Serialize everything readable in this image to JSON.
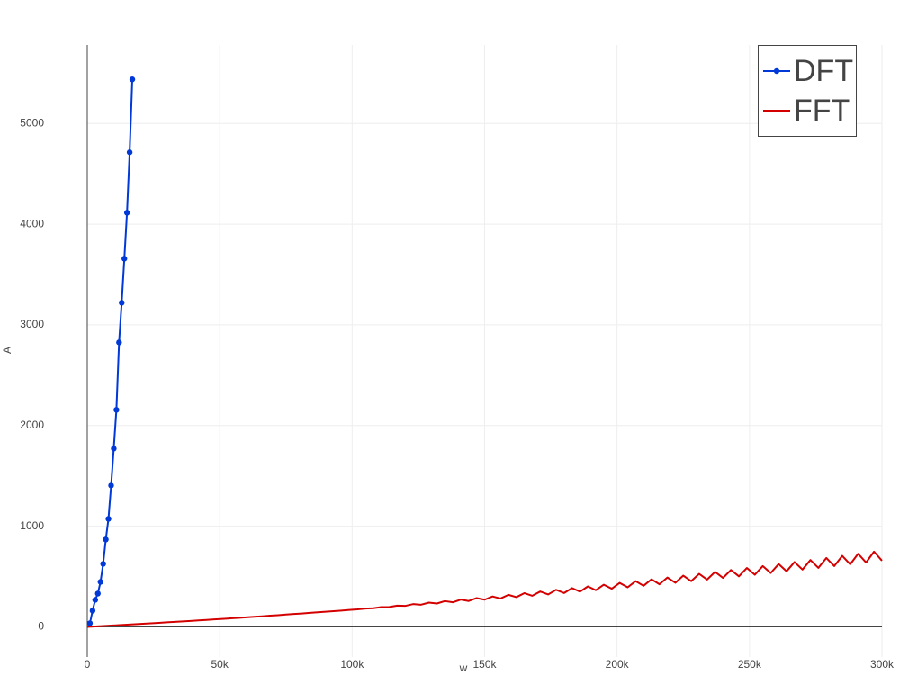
{
  "chart_data": {
    "type": "line",
    "x_label": "w",
    "y_label": "A",
    "xlim": [
      0,
      300000
    ],
    "ylim": [
      -300,
      5780
    ],
    "xticks": [
      {
        "value": 0,
        "label": "0"
      },
      {
        "value": 50000,
        "label": "50k"
      },
      {
        "value": 100000,
        "label": "100k"
      },
      {
        "value": 150000,
        "label": "150k"
      },
      {
        "value": 200000,
        "label": "200k"
      },
      {
        "value": 250000,
        "label": "250k"
      },
      {
        "value": 300000,
        "label": "300k"
      }
    ],
    "yticks": [
      0,
      1000,
      2000,
      3000,
      4000,
      5000
    ],
    "grid": true,
    "legend_position": "top-right",
    "series": [
      {
        "name": "DFT",
        "color": "#0039d8",
        "markers": true,
        "x": [
          1000,
          2000,
          3000,
          4000,
          5000,
          6000,
          7000,
          8000,
          9000,
          10000,
          11000,
          12000,
          13000,
          14000,
          15000,
          16000,
          17000
        ],
        "values": [
          36,
          161,
          268,
          331,
          447,
          626,
          868,
          1073,
          1404,
          1771,
          2156,
          2826,
          3220,
          3658,
          4114,
          4714,
          5438
        ]
      },
      {
        "name": "FFT",
        "color": "#d40000",
        "markers": false,
        "x": [
          0,
          3000,
          6000,
          9000,
          12000,
          15000,
          18000,
          21000,
          24000,
          27000,
          30000,
          33000,
          36000,
          39000,
          42000,
          45000,
          48000,
          51000,
          54000,
          57000,
          60000,
          63000,
          66000,
          69000,
          72000,
          75000,
          78000,
          81000,
          84000,
          87000,
          90000,
          93000,
          96000,
          99000,
          102000,
          105000,
          108000,
          111000,
          114000,
          117000,
          120000,
          123000,
          126000,
          129000,
          132000,
          135000,
          138000,
          141000,
          144000,
          147000,
          150000,
          153000,
          156000,
          159000,
          162000,
          165000,
          168000,
          171000,
          174000,
          177000,
          180000,
          183000,
          186000,
          189000,
          192000,
          195000,
          198000,
          201000,
          204000,
          207000,
          210000,
          213000,
          216000,
          219000,
          222000,
          225000,
          228000,
          231000,
          234000,
          237000,
          240000,
          243000,
          246000,
          249000,
          252000,
          255000,
          258000,
          261000,
          264000,
          267000,
          270000,
          273000,
          276000,
          279000,
          282000,
          285000,
          288000,
          291000,
          294000,
          297000,
          300000
        ],
        "values": [
          0,
          4,
          9,
          13,
          17,
          22,
          26,
          31,
          35,
          40,
          45,
          50,
          54,
          59,
          64,
          69,
          74,
          79,
          84,
          89,
          95,
          100,
          105,
          111,
          116,
          122,
          128,
          133,
          139,
          145,
          150,
          156,
          162,
          168,
          174,
          182,
          185,
          196,
          197,
          211,
          208,
          226,
          220,
          241,
          232,
          256,
          244,
          271,
          257,
          286,
          270,
          302,
          282,
          318,
          295,
          335,
          309,
          351,
          322,
          368,
          336,
          385,
          350,
          402,
          364,
          419,
          379,
          437,
          393,
          454,
          408,
          472,
          423,
          490,
          438,
          509,
          454,
          527,
          470,
          546,
          486,
          565,
          502,
          585,
          518,
          604,
          535,
          624,
          552,
          644,
          569,
          664,
          586,
          684,
          604,
          705,
          621,
          726,
          639,
          747,
          657
        ]
      }
    ]
  }
}
